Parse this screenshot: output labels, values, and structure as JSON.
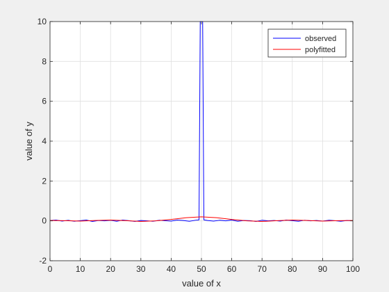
{
  "chart_data": {
    "type": "line",
    "title": "",
    "xlabel": "value of x",
    "ylabel": "value of y",
    "xlim": [
      0,
      100
    ],
    "ylim": [
      -2,
      10
    ],
    "xticks": [
      0,
      10,
      20,
      30,
      40,
      50,
      60,
      70,
      80,
      90,
      100
    ],
    "yticks": [
      -2,
      0,
      2,
      4,
      6,
      8,
      10
    ],
    "grid": true,
    "legend": "top-right",
    "series": [
      {
        "name": "observed",
        "color": "#0000ff",
        "x": [
          0,
          2,
          4,
          6,
          8,
          10,
          12,
          14,
          16,
          18,
          20,
          22,
          24,
          26,
          28,
          30,
          32,
          34,
          36,
          38,
          40,
          42,
          44,
          46,
          48,
          49.2,
          49.6,
          50,
          50.4,
          50.8,
          52,
          54,
          56,
          58,
          60,
          62,
          64,
          66,
          68,
          70,
          72,
          74,
          76,
          78,
          80,
          82,
          84,
          86,
          88,
          90,
          92,
          94,
          96,
          98,
          100
        ],
        "y": [
          0.02,
          0.04,
          -0.01,
          0.03,
          -0.02,
          0.01,
          0.04,
          -0.03,
          0.02,
          0.0,
          0.03,
          -0.02,
          0.04,
          0.01,
          -0.03,
          0.02,
          0.0,
          -0.02,
          0.03,
          0.01,
          -0.01,
          0.04,
          0.02,
          -0.02,
          0.03,
          0.05,
          10,
          10,
          10,
          0.05,
          0.02,
          -0.01,
          0.03,
          0.0,
          0.04,
          -0.02,
          0.02,
          0.01,
          -0.03,
          0.03,
          0.0,
          0.02,
          -0.01,
          0.04,
          0.01,
          -0.02,
          0.03,
          0.0,
          0.02,
          -0.01,
          0.03,
          0.01,
          -0.02,
          0.02,
          0.0
        ]
      },
      {
        "name": "polyfitted",
        "color": "#ff0000",
        "x": [
          0,
          5,
          10,
          15,
          20,
          25,
          30,
          35,
          40,
          45,
          50,
          55,
          60,
          65,
          70,
          75,
          80,
          85,
          90,
          95,
          100
        ],
        "y": [
          0.02,
          0.01,
          -0.01,
          0.02,
          0.04,
          0.01,
          -0.03,
          0.0,
          0.07,
          0.16,
          0.2,
          0.16,
          0.07,
          0.0,
          -0.03,
          0.01,
          0.04,
          0.02,
          -0.01,
          0.01,
          0.02
        ]
      }
    ]
  }
}
